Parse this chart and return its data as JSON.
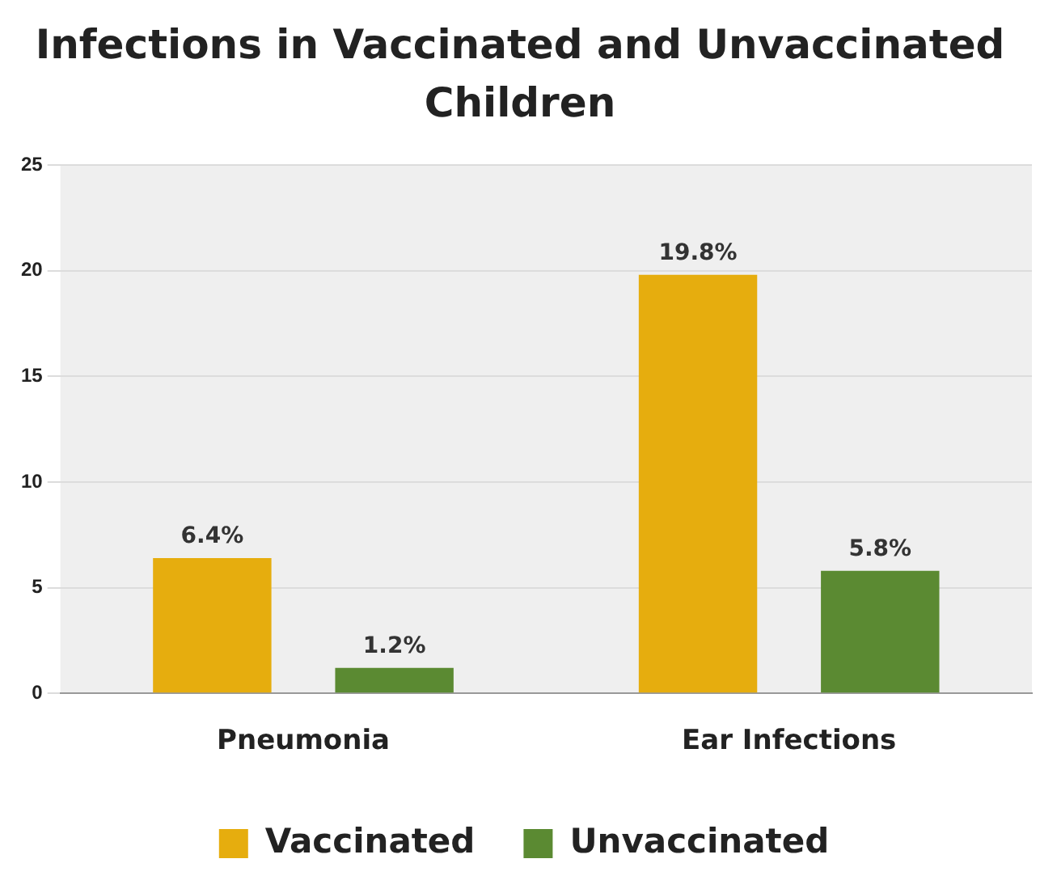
{
  "chart_data": {
    "type": "bar",
    "title": "Infections in Vaccinated and Unvaccinated Children",
    "categories": [
      "Pneumonia",
      "Ear Infections"
    ],
    "series": [
      {
        "name": "Vaccinated",
        "color": "#e6ad0e",
        "values": [
          6.4,
          19.8
        ],
        "value_labels": [
          "6.4%",
          "19.8%"
        ]
      },
      {
        "name": "Unvaccinated",
        "color": "#5b8a32",
        "values": [
          1.2,
          5.8
        ],
        "value_labels": [
          "1.2%",
          "5.8%"
        ]
      }
    ],
    "ylim": [
      0,
      25
    ],
    "yticks": [
      0,
      5,
      10,
      15,
      20,
      25
    ],
    "grid": "y",
    "legend": "bottom"
  }
}
